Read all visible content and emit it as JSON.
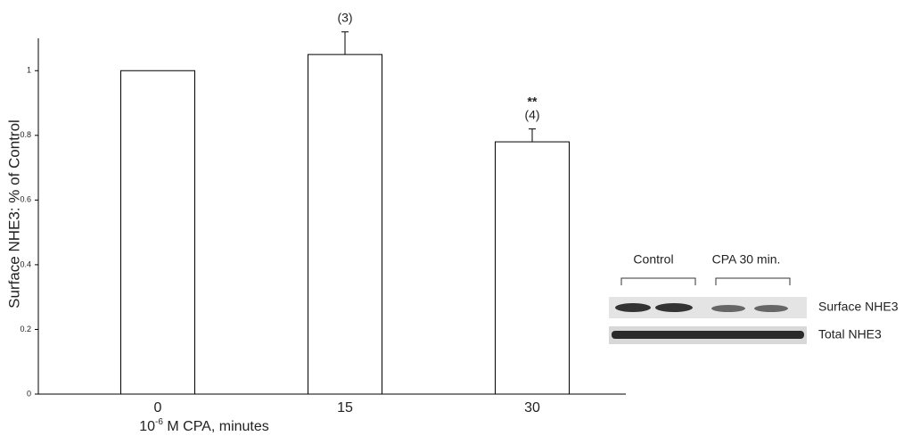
{
  "chart_data": {
    "type": "bar",
    "y_label": "Surface NHE3: % of Control",
    "x_label": {
      "base": "10",
      "exponent": "-6",
      "rest": " M CPA, minutes"
    },
    "categories": [
      "0",
      "15",
      "30"
    ],
    "values": [
      1,
      1.05,
      0.78
    ],
    "errors": [
      null,
      0.07,
      0.04
    ],
    "n_labels": [
      null,
      "(3)",
      "(4)"
    ],
    "significance": [
      null,
      null,
      "**"
    ],
    "color": "#ffffff",
    "ylim": [
      0,
      1.1
    ],
    "yticks": [
      0,
      0.2,
      0.4,
      0.6,
      0.8,
      1
    ]
  },
  "blot": {
    "groups": [
      "Control",
      "CPA 30 min."
    ],
    "rows": [
      "Surface NHE3",
      "Total NHE3"
    ]
  }
}
